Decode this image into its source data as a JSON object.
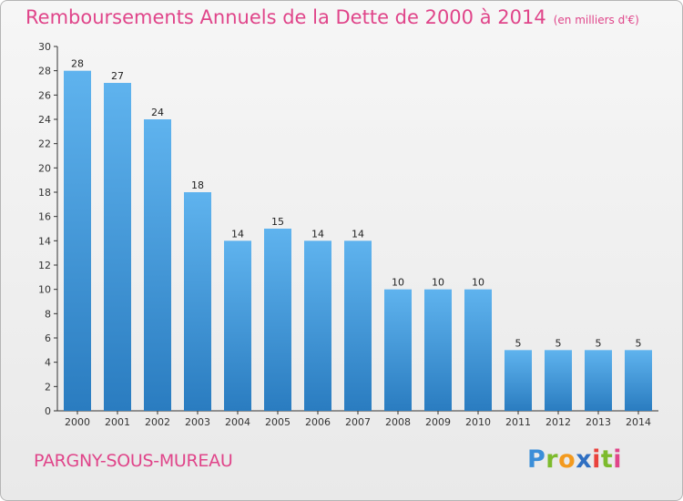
{
  "chart_data": {
    "type": "bar",
    "title": "Remboursements Annuels de la Dette de 2000 à 2014",
    "unit_label": "(en milliers d'€)",
    "categories": [
      "2000",
      "2001",
      "2002",
      "2003",
      "2004",
      "2005",
      "2006",
      "2007",
      "2008",
      "2009",
      "2010",
      "2011",
      "2012",
      "2013",
      "2014"
    ],
    "values": [
      28,
      27,
      24,
      18,
      14,
      15,
      14,
      14,
      10,
      10,
      10,
      5,
      5,
      5,
      5
    ],
    "ylim": [
      0,
      30
    ],
    "yticks": [
      0,
      2,
      4,
      6,
      8,
      10,
      12,
      14,
      16,
      18,
      20,
      22,
      24,
      26,
      28,
      30
    ],
    "xlabel": "",
    "ylabel": "",
    "grid": false,
    "bar_color": "#3c97d9",
    "text_color": "#e0458a"
  },
  "commune": "PARGNY-SOUS-MUREAU",
  "logo": {
    "letters": [
      "P",
      "r",
      "o",
      "x",
      "i",
      "t",
      "i"
    ],
    "colors": [
      "#3b8ed8",
      "#7dbb2d",
      "#f39a1e",
      "#2f6fc2",
      "#e9423c",
      "#7dbb2d",
      "#e0458a"
    ]
  }
}
